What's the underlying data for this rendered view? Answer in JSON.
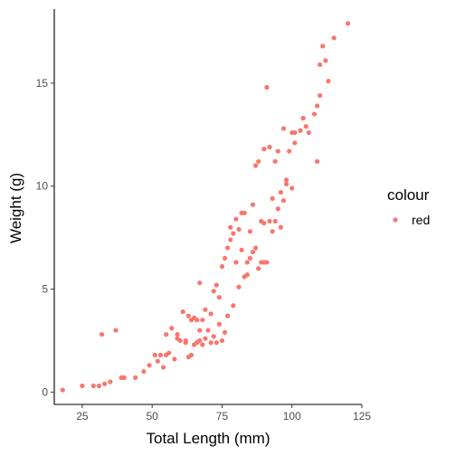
{
  "chart_data": {
    "type": "scatter",
    "title": "",
    "xlabel": "Total Length (mm)",
    "ylabel": "Weight (g)",
    "xlim": [
      15,
      125
    ],
    "ylim": [
      -0.6,
      18.6
    ],
    "xticks": [
      25,
      50,
      75,
      100,
      125
    ],
    "yticks": [
      0,
      5,
      10,
      15
    ],
    "grid": false,
    "legend": {
      "title": "colour",
      "position": "right",
      "entries": [
        {
          "label": "red",
          "color": "#F8766D"
        }
      ]
    },
    "series": [
      {
        "name": "red",
        "color": "#F8766D",
        "x": [
          18,
          25,
          29,
          31,
          33,
          35,
          39,
          40,
          44,
          47,
          49,
          51,
          52,
          53,
          54,
          55,
          55,
          56,
          57,
          58,
          59,
          59,
          60,
          61,
          62,
          62,
          63,
          63,
          64,
          64,
          65,
          65,
          66,
          66,
          67,
          67,
          67,
          68,
          68,
          69,
          69,
          70,
          71,
          71,
          72,
          72,
          73,
          73,
          74,
          74,
          75,
          75,
          76,
          76,
          77,
          77,
          78,
          78,
          79,
          79,
          80,
          80,
          81,
          81,
          82,
          82,
          83,
          83,
          84,
          84,
          85,
          85,
          86,
          86,
          87,
          87,
          88,
          88,
          89,
          89,
          90,
          90,
          90,
          91,
          91,
          92,
          92,
          93,
          93,
          94,
          94,
          95,
          95,
          96,
          96,
          97,
          97,
          98,
          98,
          99,
          100,
          100,
          101,
          101,
          103,
          104,
          105,
          106,
          108,
          109,
          109,
          110,
          110,
          111,
          112,
          113,
          115,
          120,
          32,
          37
        ],
        "y": [
          0.1,
          0.3,
          0.3,
          0.3,
          0.4,
          0.5,
          0.7,
          0.7,
          0.7,
          1.0,
          1.3,
          1.8,
          1.5,
          1.8,
          1.2,
          2.8,
          1.8,
          1.9,
          3.1,
          1.6,
          2.6,
          2.8,
          2.5,
          3.9,
          2.4,
          2.5,
          1.7,
          3.7,
          3.5,
          1.8,
          2.3,
          3.6,
          3.5,
          2.4,
          2.5,
          3.0,
          5.3,
          2.3,
          3.5,
          2.6,
          4.0,
          3.0,
          2.4,
          3.8,
          2.7,
          4.9,
          2.4,
          5.2,
          3.3,
          4.6,
          2.5,
          6.1,
          2.9,
          6.5,
          3.7,
          7.0,
          7.4,
          8.0,
          4.2,
          7.7,
          8.4,
          6.3,
          5.1,
          7.9,
          6.9,
          8.7,
          5.6,
          8.7,
          6.3,
          5.7,
          7.8,
          6.5,
          6.8,
          9.1,
          11.0,
          7.0,
          11.2,
          6.0,
          6.3,
          8.3,
          11.8,
          8.2,
          6.3,
          6.3,
          14.8,
          8.3,
          11.9,
          9.4,
          7.8,
          11.2,
          8.3,
          11.7,
          8.9,
          9.7,
          8.0,
          12.8,
          9.3,
          10.3,
          10.1,
          11.7,
          12.6,
          9.9,
          12.1,
          12.6,
          12.7,
          13.3,
          12.9,
          12.6,
          13.5,
          11.2,
          13.9,
          14.4,
          15.9,
          16.8,
          16.1,
          15.1,
          17.2,
          17.9,
          2.8,
          3.0
        ]
      }
    ]
  }
}
